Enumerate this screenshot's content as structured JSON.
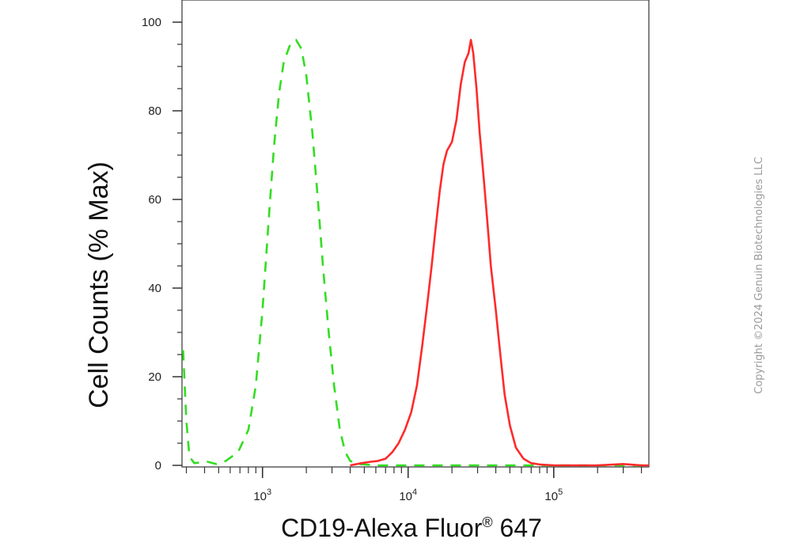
{
  "chart_data": {
    "type": "line",
    "title": "",
    "xlabel": "CD19-Alexa Fluor",
    "xlabel_superscript": "®",
    "xlabel_suffix": " 647",
    "ylabel": "Cell Counts (% Max)",
    "x_scale": "log",
    "xlim": [
      280,
      450000
    ],
    "ylim": [
      0,
      100
    ],
    "y_ticks": [
      0,
      20,
      40,
      60,
      80,
      100
    ],
    "x_ticks": [
      {
        "value": 1000,
        "base": "10",
        "exp": "3"
      },
      {
        "value": 10000,
        "base": "10",
        "exp": "4"
      },
      {
        "value": 100000,
        "base": "10",
        "exp": "5"
      }
    ],
    "grid": false,
    "legend": "none",
    "series": [
      {
        "color": "#33dd22",
        "style": "dashed",
        "points": [
          [
            285,
            26
          ],
          [
            300,
            10
          ],
          [
            315,
            2
          ],
          [
            340,
            0.5
          ],
          [
            420,
            0.8
          ],
          [
            480,
            0.3
          ],
          [
            560,
            1
          ],
          [
            680,
            3
          ],
          [
            800,
            8
          ],
          [
            900,
            18
          ],
          [
            1000,
            35
          ],
          [
            1100,
            55
          ],
          [
            1200,
            72
          ],
          [
            1300,
            84
          ],
          [
            1400,
            91
          ],
          [
            1550,
            95
          ],
          [
            1700,
            96
          ],
          [
            1850,
            94
          ],
          [
            2000,
            88
          ],
          [
            2200,
            75
          ],
          [
            2400,
            60
          ],
          [
            2600,
            45
          ],
          [
            2850,
            30
          ],
          [
            3100,
            18
          ],
          [
            3400,
            8
          ],
          [
            3700,
            3
          ],
          [
            4000,
            1
          ],
          [
            4500,
            0.3
          ],
          [
            6000,
            0
          ],
          [
            20000,
            0
          ],
          [
            50000,
            0
          ],
          [
            450000,
            0
          ]
        ]
      },
      {
        "color": "#ff2a2a",
        "style": "solid",
        "points": [
          [
            4000,
            0
          ],
          [
            4800,
            0.5
          ],
          [
            5500,
            0.8
          ],
          [
            6200,
            1
          ],
          [
            7000,
            1.5
          ],
          [
            7800,
            3
          ],
          [
            8600,
            5
          ],
          [
            9500,
            8
          ],
          [
            10500,
            12
          ],
          [
            11500,
            18
          ],
          [
            12500,
            27
          ],
          [
            13500,
            36
          ],
          [
            14500,
            45
          ],
          [
            15500,
            54
          ],
          [
            16500,
            62
          ],
          [
            17500,
            68
          ],
          [
            18500,
            71
          ],
          [
            20000,
            73
          ],
          [
            21500,
            78
          ],
          [
            23000,
            86
          ],
          [
            24500,
            91
          ],
          [
            26000,
            93
          ],
          [
            27000,
            96
          ],
          [
            28000,
            93
          ],
          [
            29500,
            85
          ],
          [
            31000,
            75
          ],
          [
            33000,
            65
          ],
          [
            35000,
            55
          ],
          [
            37000,
            45
          ],
          [
            40000,
            35
          ],
          [
            43000,
            25
          ],
          [
            46000,
            16
          ],
          [
            50000,
            9
          ],
          [
            55000,
            4
          ],
          [
            62000,
            1.5
          ],
          [
            70000,
            0.5
          ],
          [
            80000,
            0.2
          ],
          [
            100000,
            0
          ],
          [
            200000,
            0
          ],
          [
            300000,
            0.3
          ],
          [
            400000,
            0
          ],
          [
            450000,
            0
          ]
        ]
      }
    ]
  },
  "copyright": "Copyright ©2024 Genuin Biotechnologies LLC"
}
